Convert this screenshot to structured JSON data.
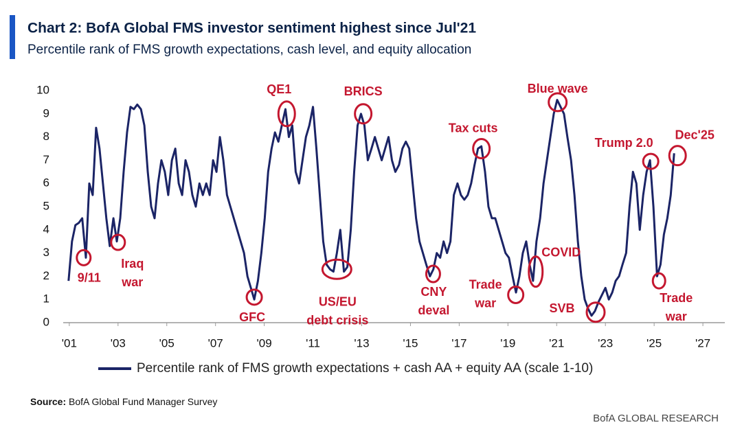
{
  "chart_data": {
    "type": "line",
    "title": "Chart 2: BofA Global FMS investor sentiment highest since Jul'21",
    "subtitle": "Percentile rank of FMS growth expectations, cash level, and equity allocation",
    "source_label": "Source:",
    "source": "BofA Global Fund Manager Survey",
    "brand": "BofA GLOBAL RESEARCH",
    "x": [
      2000.97,
      2001.11,
      2001.25,
      2001.39,
      2001.53,
      2001.68,
      2001.82,
      2001.96,
      2002.1,
      2002.24,
      2002.38,
      2002.52,
      2002.66,
      2002.81,
      2002.95,
      2003.09,
      2003.23,
      2003.37,
      2003.51,
      2003.65,
      2003.79,
      2003.94,
      2004.08,
      2004.22,
      2004.36,
      2004.5,
      2004.64,
      2004.78,
      2004.92,
      2005.06,
      2005.21,
      2005.35,
      2005.49,
      2005.63,
      2005.77,
      2005.91,
      2006.05,
      2006.19,
      2006.34,
      2006.48,
      2006.62,
      2006.76,
      2006.9,
      2007.04,
      2007.18,
      2007.32,
      2007.47,
      2007.61,
      2007.75,
      2007.89,
      2008.03,
      2008.17,
      2008.31,
      2008.45,
      2008.59,
      2008.74,
      2008.88,
      2009.02,
      2009.16,
      2009.3,
      2009.44,
      2009.58,
      2009.72,
      2009.87,
      2010.01,
      2010.15,
      2010.29,
      2010.43,
      2010.57,
      2010.71,
      2010.85,
      2011.0,
      2011.14,
      2011.28,
      2011.42,
      2011.56,
      2011.7,
      2011.84,
      2011.98,
      2012.12,
      2012.27,
      2012.41,
      2012.55,
      2012.69,
      2012.83,
      2012.97,
      2013.11,
      2013.25,
      2013.4,
      2013.54,
      2013.68,
      2013.82,
      2013.96,
      2014.1,
      2014.24,
      2014.38,
      2014.53,
      2014.67,
      2014.81,
      2014.95,
      2015.09,
      2015.23,
      2015.37,
      2015.51,
      2015.65,
      2015.8,
      2015.94,
      2016.08,
      2016.22,
      2016.36,
      2016.5,
      2016.64,
      2016.78,
      2016.93,
      2017.07,
      2017.21,
      2017.35,
      2017.49,
      2017.63,
      2017.77,
      2017.91,
      2018.06,
      2018.2,
      2018.34,
      2018.48,
      2018.62,
      2018.76,
      2018.9,
      2019.04,
      2019.19,
      2019.33,
      2019.47,
      2019.61,
      2019.75,
      2019.89,
      2020.03,
      2020.17,
      2020.32,
      2020.46,
      2020.6,
      2020.74,
      2020.88,
      2021.02,
      2021.16,
      2021.3,
      2021.44,
      2021.59,
      2021.73,
      2021.87,
      2022.01,
      2022.15,
      2022.29,
      2022.43,
      2022.57,
      2022.72,
      2022.86,
      2023.0,
      2023.14,
      2023.28,
      2023.42,
      2023.56,
      2023.7,
      2023.85,
      2023.99,
      2024.13,
      2024.27,
      2024.41,
      2024.55,
      2024.69,
      2024.83,
      2024.97,
      2025.12,
      2025.26,
      2025.4,
      2025.54,
      2025.68,
      2025.82
    ],
    "series": [
      {
        "name": "Percentile rank of FMS growth expectations + cash AA + equity AA (scale 1-10)",
        "color": "#1b2466",
        "values": [
          1.8,
          3.5,
          4.2,
          4.3,
          4.5,
          2.8,
          6.0,
          5.5,
          8.4,
          7.5,
          6.0,
          4.5,
          3.3,
          4.5,
          3.5,
          4.5,
          6.5,
          8.2,
          9.3,
          9.2,
          9.4,
          9.2,
          8.5,
          6.5,
          5.0,
          4.5,
          6.0,
          7.0,
          6.5,
          5.5,
          7.0,
          7.5,
          6.0,
          5.5,
          7.0,
          6.5,
          5.5,
          5.0,
          6.0,
          5.5,
          6.0,
          5.5,
          7.0,
          6.5,
          8.0,
          7.0,
          5.5,
          5.0,
          4.5,
          4.0,
          3.5,
          3.0,
          2.0,
          1.5,
          1.0,
          1.8,
          3.0,
          4.5,
          6.5,
          7.5,
          8.2,
          7.8,
          8.5,
          9.2,
          8.0,
          8.5,
          6.5,
          6.0,
          7.0,
          8.0,
          8.5,
          9.3,
          7.5,
          5.5,
          3.5,
          2.5,
          2.3,
          2.2,
          3.0,
          4.0,
          2.2,
          2.4,
          4.0,
          6.5,
          8.5,
          9.0,
          8.5,
          7.0,
          7.5,
          8.0,
          7.5,
          7.0,
          7.5,
          8.0,
          7.0,
          6.5,
          6.8,
          7.5,
          7.8,
          7.5,
          6.0,
          4.5,
          3.5,
          3.0,
          2.5,
          2.0,
          2.3,
          3.0,
          2.8,
          3.5,
          3.0,
          3.5,
          5.5,
          6.0,
          5.5,
          5.3,
          5.5,
          6.0,
          6.8,
          7.5,
          7.6,
          6.5,
          5.0,
          4.5,
          4.5,
          4.0,
          3.5,
          3.0,
          2.8,
          2.0,
          1.3,
          2.0,
          3.0,
          3.5,
          2.5,
          1.8,
          3.5,
          4.5,
          6.0,
          7.0,
          8.0,
          9.0,
          9.6,
          9.3,
          9.0,
          8.0,
          7.0,
          5.5,
          3.5,
          2.0,
          1.0,
          0.6,
          0.3,
          0.5,
          0.9,
          1.2,
          1.5,
          1.0,
          1.3,
          1.8,
          2.0,
          2.5,
          3.0,
          5.0,
          6.5,
          6.0,
          4.0,
          5.5,
          6.5,
          7.0,
          5.0,
          2.0,
          2.5,
          3.8,
          4.5,
          5.5,
          7.3
        ]
      }
    ],
    "xlim": [
      2000.75,
      2027.9
    ],
    "xticks": [
      {
        "value": 2001,
        "label": "'01"
      },
      {
        "value": 2003,
        "label": "'03"
      },
      {
        "value": 2005,
        "label": "'05"
      },
      {
        "value": 2007,
        "label": "'07"
      },
      {
        "value": 2009,
        "label": "'09"
      },
      {
        "value": 2011,
        "label": "'11"
      },
      {
        "value": 2013,
        "label": "'13"
      },
      {
        "value": 2015,
        "label": "'15"
      },
      {
        "value": 2017,
        "label": "'17"
      },
      {
        "value": 2019,
        "label": "'19"
      },
      {
        "value": 2021,
        "label": "'21"
      },
      {
        "value": 2023,
        "label": "'23"
      },
      {
        "value": 2025,
        "label": "'25"
      },
      {
        "value": 2027,
        "label": "'27"
      }
    ],
    "ylim": [
      0,
      10
    ],
    "yticks": [
      0,
      1,
      2,
      3,
      4,
      5,
      6,
      7,
      8,
      9,
      10
    ],
    "grid": false,
    "annotation_color": "#c4172f",
    "annotations": [
      {
        "lines": [
          "9/11"
        ],
        "x": 2001.59,
        "y": 2.8
      },
      {
        "lines": [
          "Iraq",
          "war"
        ],
        "x": 2003.0,
        "y": 3.46
      },
      {
        "lines": [
          "GFC"
        ],
        "x": 2008.59,
        "y": 1.1
      },
      {
        "lines": [
          "QE1"
        ],
        "x": 2009.92,
        "y": 9.0
      },
      {
        "lines": [
          "US/EU",
          "debt crisis"
        ],
        "x": 2011.98,
        "y": 2.3
      },
      {
        "lines": [
          "BRICS"
        ],
        "x": 2013.06,
        "y": 9.0
      },
      {
        "lines": [
          "CNY",
          "deval"
        ],
        "x": 2015.93,
        "y": 2.1
      },
      {
        "lines": [
          "Tax cuts"
        ],
        "x": 2017.91,
        "y": 7.5
      },
      {
        "lines": [
          "Trade",
          "war"
        ],
        "x": 2019.32,
        "y": 1.2
      },
      {
        "lines": [
          "COVID"
        ],
        "x": 2020.14,
        "y": 2.2
      },
      {
        "lines": [
          "Blue wave"
        ],
        "x": 2021.04,
        "y": 9.5
      },
      {
        "lines": [
          "SVB"
        ],
        "x": 2022.6,
        "y": 0.45
      },
      {
        "lines": [
          "Trump 2.0"
        ],
        "x": 2024.86,
        "y": 6.95
      },
      {
        "lines": [
          "Trade",
          "war"
        ],
        "x": 2025.2,
        "y": 1.8
      },
      {
        "lines": [
          "Dec'25"
        ],
        "x": 2025.96,
        "y": 7.2
      }
    ]
  }
}
